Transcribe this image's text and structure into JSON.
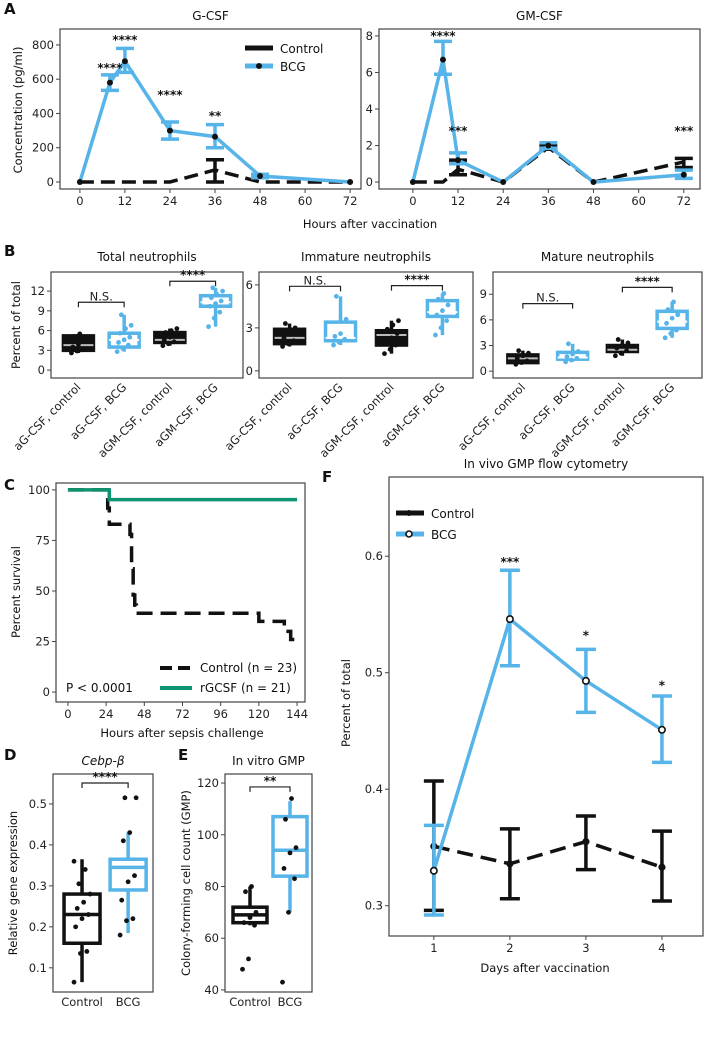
{
  "panels": [
    "A",
    "B",
    "C",
    "D",
    "E",
    "F"
  ],
  "colors": {
    "control": "#111111",
    "bcg": "#56B4E9",
    "rgcsf": "#0E9470"
  },
  "chart_data": [
    {
      "id": "A-gcsf",
      "type": "line",
      "title": "G-CSF",
      "xlabel": "Hours after vaccination",
      "ylabel": "Concentration (pg/ml)",
      "xlim": [
        -5.3,
        74.9
      ],
      "ylim": [
        -41,
        893
      ],
      "xticks": [
        0,
        12,
        24,
        36,
        48,
        60,
        72
      ],
      "yticks": [
        0,
        200,
        400,
        600,
        800
      ],
      "x": [
        0,
        8,
        12,
        24,
        36,
        48,
        72
      ],
      "legend_position": "top-right",
      "series": [
        {
          "name": "Control",
          "values": [
            0,
            0,
            0,
            0,
            70,
            0,
            0
          ],
          "err_low": [
            0,
            0,
            0,
            0,
            0,
            0,
            0
          ],
          "err_high": [
            0,
            0,
            0,
            0,
            130,
            0,
            0
          ]
        },
        {
          "name": "BCG",
          "values": [
            0,
            580,
            705,
            300,
            265,
            35,
            0
          ],
          "err_low": [
            0,
            535,
            640,
            250,
            200,
            25,
            0
          ],
          "err_high": [
            0,
            625,
            780,
            350,
            335,
            45,
            0
          ]
        }
      ],
      "annotations": [
        {
          "x": 8,
          "y": 666,
          "text": "****"
        },
        {
          "x": 12,
          "y": 829,
          "text": "****"
        },
        {
          "x": 24,
          "y": 508,
          "text": "****"
        },
        {
          "x": 36,
          "y": 385,
          "text": "**"
        }
      ]
    },
    {
      "id": "A-gmcsf",
      "type": "line",
      "title": "GM-CSF",
      "xlim": [
        -9.0,
        76.3
      ],
      "ylim": [
        -0.38,
        8.38
      ],
      "xticks": [
        0,
        12,
        24,
        36,
        48,
        60,
        72
      ],
      "yticks": [
        0,
        2,
        4,
        6,
        8
      ],
      "x": [
        0,
        8,
        12,
        24,
        36,
        48,
        72
      ],
      "series": [
        {
          "name": "Control",
          "values": [
            0,
            0,
            0.7,
            0,
            1.9,
            0,
            1.1
          ],
          "err_low": [
            0,
            0,
            0.4,
            0,
            1.8,
            0,
            0.8
          ],
          "err_high": [
            0,
            0,
            1.2,
            0,
            2.0,
            0,
            1.3
          ]
        },
        {
          "name": "BCG",
          "values": [
            0,
            6.7,
            1.2,
            0,
            2.0,
            0,
            0.4
          ],
          "err_low": [
            0,
            5.9,
            1.0,
            0,
            1.85,
            0,
            0.2
          ],
          "err_high": [
            0,
            7.7,
            1.6,
            0,
            2.15,
            0,
            0.65
          ]
        }
      ],
      "annotations": [
        {
          "x": 8,
          "y": 8.0,
          "text": "****"
        },
        {
          "x": 12,
          "y": 2.8,
          "text": "***"
        },
        {
          "x": 72,
          "y": 2.8,
          "text": "***"
        }
      ]
    },
    {
      "id": "B-total",
      "type": "box",
      "title": "Total neutrophils",
      "ylabel": "Percent of total",
      "xlim": [
        0.4,
        4.6
      ],
      "ylim": [
        -1.2,
        14.9
      ],
      "yticks": [
        0,
        3,
        6,
        9,
        12
      ],
      "categories": [
        "aG-CSF, control",
        "aG-CSF, BCG",
        "aGM-CSF, control",
        "aGM-CSF, BCG"
      ],
      "groups": [
        "control",
        "bcg",
        "control",
        "bcg"
      ],
      "boxes": [
        {
          "min": 2.6,
          "q1": 3.0,
          "median": 3.8,
          "q3": 5.2,
          "max": 5.5,
          "points": [
            2.6,
            2.9,
            3.1,
            3.5,
            3.9,
            4.8,
            5.1,
            5.5
          ]
        },
        {
          "min": 2.8,
          "q1": 3.5,
          "median": 4.6,
          "q3": 5.6,
          "max": 8.4,
          "points": [
            2.8,
            3.3,
            3.8,
            4.2,
            4.6,
            5.0,
            5.6,
            6.3,
            6.8,
            8.4
          ]
        },
        {
          "min": 3.7,
          "q1": 4.2,
          "median": 4.6,
          "q3": 5.7,
          "max": 6.3,
          "points": [
            3.7,
            4.0,
            4.3,
            4.6,
            5.0,
            5.3,
            5.7,
            6.0,
            6.3
          ]
        },
        {
          "min": 6.6,
          "q1": 9.7,
          "median": 10.3,
          "q3": 11.3,
          "max": 12.5,
          "points": [
            6.6,
            7.9,
            8.8,
            9.7,
            10.1,
            10.5,
            11.0,
            11.5,
            12.0,
            12.5
          ]
        }
      ],
      "brackets": [
        {
          "from": 1,
          "to": 2,
          "y": 10.3,
          "text": "N.S."
        },
        {
          "from": 3,
          "to": 4,
          "y": 13.5,
          "text": "****"
        }
      ]
    },
    {
      "id": "B-immature",
      "type": "box",
      "title": "Immature neutrophils",
      "xlim": [
        0.4,
        4.6
      ],
      "ylim": [
        -0.5,
        6.9
      ],
      "yticks": [
        0,
        3,
        6
      ],
      "categories": [
        "aG-CSF, control",
        "aG-CSF, BCG",
        "aGM-CSF, control",
        "aGM-CSF, BCG"
      ],
      "groups": [
        "control",
        "bcg",
        "control",
        "bcg"
      ],
      "boxes": [
        {
          "min": 1.7,
          "q1": 1.9,
          "median": 2.3,
          "q3": 2.9,
          "max": 3.3,
          "points": [
            1.7,
            1.9,
            2.1,
            2.3,
            2.6,
            3.0,
            3.3
          ]
        },
        {
          "min": 1.8,
          "q1": 2.1,
          "median": 2.3,
          "q3": 3.4,
          "max": 5.2,
          "points": [
            1.8,
            2.0,
            2.2,
            2.4,
            2.6,
            3.6,
            5.2
          ]
        },
        {
          "min": 1.2,
          "q1": 1.8,
          "median": 2.5,
          "q3": 2.8,
          "max": 3.5,
          "points": [
            1.2,
            1.5,
            1.8,
            2.0,
            2.3,
            2.6,
            2.9,
            3.2,
            3.5
          ]
        },
        {
          "min": 2.5,
          "q1": 3.8,
          "median": 4.1,
          "q3": 4.9,
          "max": 5.4,
          "points": [
            2.5,
            3.0,
            3.5,
            3.9,
            4.2,
            4.6,
            5.0,
            5.4
          ]
        }
      ],
      "brackets": [
        {
          "from": 1,
          "to": 2,
          "y": 5.9,
          "text": "N.S."
        },
        {
          "from": 3,
          "to": 4,
          "y": 5.95,
          "text": "****"
        }
      ]
    },
    {
      "id": "B-mature",
      "type": "box",
      "title": "Mature neutrophils",
      "xlim": [
        0.4,
        4.6
      ],
      "ylim": [
        -0.8,
        11.6
      ],
      "yticks": [
        0,
        3,
        6,
        9
      ],
      "categories": [
        "aG-CSF, control",
        "aG-CSF, BCG",
        "aGM-CSF, control",
        "aGM-CSF, BCG"
      ],
      "groups": [
        "control",
        "bcg",
        "control",
        "bcg"
      ],
      "boxes": [
        {
          "min": 0.8,
          "q1": 1.0,
          "median": 1.5,
          "q3": 1.9,
          "max": 2.4,
          "points": [
            0.8,
            1.0,
            1.2,
            1.5,
            1.8,
            2.1,
            2.4
          ]
        },
        {
          "min": 1.1,
          "q1": 1.4,
          "median": 1.6,
          "q3": 2.2,
          "max": 3.2,
          "points": [
            1.1,
            1.3,
            1.5,
            1.7,
            2.0,
            2.3,
            3.2
          ]
        },
        {
          "min": 1.8,
          "q1": 2.3,
          "median": 2.5,
          "q3": 3.0,
          "max": 3.7,
          "points": [
            1.8,
            2.1,
            2.4,
            2.7,
            3.0,
            3.3,
            3.7
          ]
        },
        {
          "min": 3.9,
          "q1": 5.0,
          "median": 5.8,
          "q3": 7.0,
          "max": 8.1,
          "points": [
            3.9,
            4.4,
            4.8,
            5.6,
            6.2,
            6.6,
            7.2,
            8.1
          ]
        }
      ],
      "brackets": [
        {
          "from": 1,
          "to": 2,
          "y": 7.9,
          "text": "N.S."
        },
        {
          "from": 3,
          "to": 4,
          "y": 9.8,
          "text": "****"
        }
      ]
    },
    {
      "id": "C-survival",
      "type": "line",
      "subtype": "step",
      "xlabel": "Hours after sepsis challenge",
      "ylabel": "Percent survival",
      "xlim": [
        -7.5,
        149
      ],
      "ylim": [
        -4.9,
        103.4
      ],
      "xticks": [
        0,
        24,
        48,
        72,
        96,
        120,
        144
      ],
      "yticks": [
        0,
        25,
        50,
        75,
        100
      ],
      "series": [
        {
          "name": "Control",
          "x": [
            0,
            24,
            25,
            26,
            38,
            39,
            40,
            41,
            42,
            43,
            118,
            120,
            134,
            136,
            140,
            143
          ],
          "values": [
            100,
            100,
            91,
            83,
            83,
            78,
            61,
            48,
            43,
            39,
            39,
            35,
            35,
            30,
            26,
            26
          ]
        },
        {
          "name": "rGCSF",
          "x": [
            0,
            26,
            144
          ],
          "values": [
            100,
            95.2,
            95.2
          ]
        }
      ],
      "legend": [
        "Control (n = 23)",
        "rGCSF (n = 21)"
      ],
      "legend_position": "bottom-right",
      "pvalue": "P < 0.0001"
    },
    {
      "id": "D-cebpb",
      "type": "box",
      "title": "Cebp-β",
      "ylabel": "Relative gene expression",
      "xlim": [
        0.37,
        2.54
      ],
      "ylim": [
        0.041,
        0.573
      ],
      "yticks": [
        0.1,
        0.2,
        0.3,
        0.4,
        0.5
      ],
      "categories": [
        "Control",
        "BCG"
      ],
      "groups": [
        "control",
        "bcg"
      ],
      "boxes": [
        {
          "min": 0.065,
          "q1": 0.16,
          "median": 0.23,
          "q3": 0.28,
          "max": 0.365,
          "points": [
            0.065,
            0.135,
            0.14,
            0.2,
            0.22,
            0.23,
            0.245,
            0.26,
            0.28,
            0.305,
            0.34,
            0.36
          ]
        },
        {
          "min": 0.185,
          "q1": 0.29,
          "median": 0.345,
          "q3": 0.365,
          "max": 0.43,
          "points": [
            0.18,
            0.215,
            0.22,
            0.265,
            0.31,
            0.325,
            0.41,
            0.43,
            0.515,
            0.515
          ]
        }
      ],
      "brackets": [
        {
          "from": 1,
          "to": 2,
          "y": 0.551,
          "text": "****"
        }
      ]
    },
    {
      "id": "E-gmp",
      "type": "box",
      "title": "In vitro GMP",
      "ylabel": "Colony-forming cell count (GMP)",
      "xlim": [
        0.375,
        2.55
      ],
      "ylim": [
        39.2,
        123.5
      ],
      "yticks": [
        40,
        60,
        80,
        100,
        120
      ],
      "categories": [
        "Control",
        "BCG"
      ],
      "groups": [
        "control",
        "bcg"
      ],
      "boxes": [
        {
          "min": 65,
          "q1": 66,
          "median": 69,
          "q3": 72,
          "max": 80,
          "points": [
            48,
            52,
            65,
            66,
            68,
            70,
            78,
            80
          ]
        },
        {
          "min": 70,
          "q1": 84,
          "median": 94,
          "q3": 107,
          "max": 113,
          "points": [
            43,
            70,
            83,
            87,
            93,
            95,
            106,
            114
          ]
        }
      ],
      "brackets": [
        {
          "from": 1,
          "to": 2,
          "y": 118.5,
          "text": "**"
        }
      ]
    },
    {
      "id": "F-flow",
      "type": "line",
      "title": "In vivo GMP flow cytometry",
      "xlabel": "Days after vaccination",
      "ylabel": "Percent of total",
      "xlim": [
        0.41,
        4.54
      ],
      "ylim": [
        0.274,
        0.668
      ],
      "xticks": [
        1,
        2,
        3,
        4
      ],
      "yticks": [
        0.3,
        0.4,
        0.5,
        0.6
      ],
      "x": [
        1,
        2,
        3,
        4
      ],
      "legend_position": "top-left",
      "series": [
        {
          "name": "Control",
          "values": [
            0.351,
            0.336,
            0.355,
            0.333
          ],
          "err_low": [
            0.296,
            0.306,
            0.331,
            0.304
          ],
          "err_high": [
            0.407,
            0.366,
            0.377,
            0.364
          ]
        },
        {
          "name": "BCG",
          "values": [
            0.33,
            0.546,
            0.493,
            0.451
          ],
          "err_low": [
            0.292,
            0.506,
            0.466,
            0.423
          ],
          "err_high": [
            0.369,
            0.588,
            0.52,
            0.48
          ]
        }
      ],
      "annotations": [
        {
          "x": 2,
          "y": 0.595,
          "text": "***"
        },
        {
          "x": 3,
          "y": 0.532,
          "text": "*"
        },
        {
          "x": 4,
          "y": 0.489,
          "text": "*"
        }
      ]
    }
  ]
}
